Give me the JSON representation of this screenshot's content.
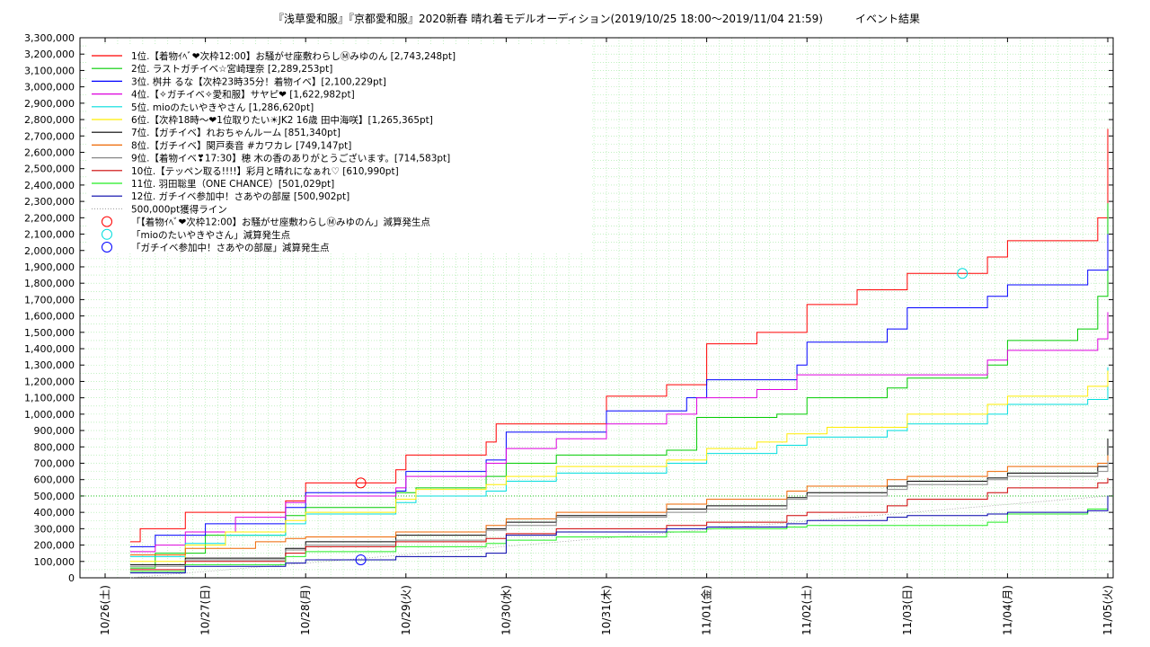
{
  "chart_data": {
    "type": "line",
    "title": "『浅草愛和服』『京都愛和服』2020新春 晴れ着モデルオーディション(2019/10/25 18:00～2019/11/04 21:59)　　　イベント結果",
    "xlabel": "",
    "ylabel": "",
    "grid": true,
    "legend_position": "top-left",
    "x_range": [
      "10/26(土)",
      "11/05(火)"
    ],
    "ylim": [
      0,
      3300000
    ],
    "y_ticks": [
      "0",
      "100,000",
      "200,000",
      "300,000",
      "400,000",
      "500,000",
      "600,000",
      "700,000",
      "800,000",
      "900,000",
      "1,000,000",
      "1,100,000",
      "1,200,000",
      "1,300,000",
      "1,400,000",
      "1,500,000",
      "1,600,000",
      "1,700,000",
      "1,800,000",
      "1,900,000",
      "2,000,000",
      "2,100,000",
      "2,200,000",
      "2,300,000",
      "2,400,000",
      "2,500,000",
      "2,600,000",
      "2,700,000",
      "2,800,000",
      "2,900,000",
      "3,000,000",
      "3,100,000",
      "3,200,000",
      "3,300,000"
    ],
    "x_ticks": [
      "10/26(土)",
      "10/27(日)",
      "10/28(月)",
      "10/29(火)",
      "10/30(水)",
      "10/31(木)",
      "11/01(金)",
      "11/02(土)",
      "11/03(日)",
      "11/04(月)",
      "11/05(火)"
    ],
    "series": [
      {
        "name": "1位.【着物ｲﾍﾞ❤次枠12:00】お騒がせ座敷わらしⓂみゆのん [2,743,248pt]",
        "color": "#ff0000",
        "points": [
          [
            0.25,
            220000
          ],
          [
            0.35,
            300000
          ],
          [
            0.8,
            400000
          ],
          [
            1.8,
            470000
          ],
          [
            2.0,
            580000
          ],
          [
            2.9,
            660000
          ],
          [
            3.0,
            750000
          ],
          [
            3.8,
            830000
          ],
          [
            3.9,
            940000
          ],
          [
            5.0,
            1110000
          ],
          [
            5.6,
            1180000
          ],
          [
            6.0,
            1430000
          ],
          [
            6.5,
            1500000
          ],
          [
            7.0,
            1670000
          ],
          [
            7.5,
            1760000
          ],
          [
            8.0,
            1860000
          ],
          [
            8.8,
            1960000
          ],
          [
            9.0,
            2060000
          ],
          [
            9.9,
            2200000
          ],
          [
            10.0,
            2743248
          ]
        ]
      },
      {
        "name": "2位. ラストガチイベ☆宮崎理奈 [2,289,253pt]",
        "color": "#00cc00",
        "points": [
          [
            0.25,
            60000
          ],
          [
            0.5,
            150000
          ],
          [
            1.0,
            260000
          ],
          [
            1.8,
            380000
          ],
          [
            2.0,
            430000
          ],
          [
            2.9,
            520000
          ],
          [
            3.1,
            550000
          ],
          [
            3.8,
            620000
          ],
          [
            4.0,
            700000
          ],
          [
            4.5,
            750000
          ],
          [
            5.6,
            780000
          ],
          [
            5.9,
            980000
          ],
          [
            6.7,
            1000000
          ],
          [
            7.0,
            1100000
          ],
          [
            7.8,
            1160000
          ],
          [
            8.0,
            1220000
          ],
          [
            8.8,
            1300000
          ],
          [
            9.0,
            1450000
          ],
          [
            9.7,
            1520000
          ],
          [
            9.9,
            1720000
          ],
          [
            10.0,
            2289253
          ]
        ]
      },
      {
        "name": "3位. 桝井 るな【次枠23時35分！着物イベ】[2,100,229pt]",
        "color": "#0000ff",
        "points": [
          [
            0.25,
            190000
          ],
          [
            0.5,
            260000
          ],
          [
            1.0,
            330000
          ],
          [
            1.8,
            430000
          ],
          [
            2.0,
            520000
          ],
          [
            2.9,
            530000
          ],
          [
            3.0,
            650000
          ],
          [
            3.8,
            720000
          ],
          [
            4.0,
            890000
          ],
          [
            5.0,
            1020000
          ],
          [
            5.8,
            1100000
          ],
          [
            6.0,
            1210000
          ],
          [
            6.9,
            1300000
          ],
          [
            7.0,
            1440000
          ],
          [
            7.8,
            1520000
          ],
          [
            8.0,
            1650000
          ],
          [
            8.8,
            1720000
          ],
          [
            9.0,
            1790000
          ],
          [
            9.8,
            1880000
          ],
          [
            10.0,
            2100229
          ]
        ]
      },
      {
        "name": "4位.【✧ガチイベ✧愛和服】サヤピ❤ [1,622,982pt]",
        "color": "#dd00dd",
        "points": [
          [
            0.25,
            160000
          ],
          [
            0.5,
            200000
          ],
          [
            0.8,
            280000
          ],
          [
            1.3,
            370000
          ],
          [
            1.8,
            460000
          ],
          [
            2.0,
            500000
          ],
          [
            2.9,
            550000
          ],
          [
            3.0,
            620000
          ],
          [
            3.8,
            700000
          ],
          [
            4.0,
            790000
          ],
          [
            4.5,
            850000
          ],
          [
            5.0,
            940000
          ],
          [
            5.6,
            1000000
          ],
          [
            5.9,
            1100000
          ],
          [
            6.5,
            1150000
          ],
          [
            6.9,
            1240000
          ],
          [
            8.8,
            1330000
          ],
          [
            9.0,
            1390000
          ],
          [
            9.9,
            1460000
          ],
          [
            10.0,
            1622982
          ]
        ]
      },
      {
        "name": "5位. mioのたいやきやさん [1,286,620pt]",
        "color": "#00dddd",
        "points": [
          [
            0.25,
            130000
          ],
          [
            0.8,
            210000
          ],
          [
            1.2,
            260000
          ],
          [
            1.8,
            330000
          ],
          [
            2.0,
            390000
          ],
          [
            2.9,
            460000
          ],
          [
            3.1,
            500000
          ],
          [
            3.8,
            530000
          ],
          [
            4.0,
            590000
          ],
          [
            4.5,
            640000
          ],
          [
            5.6,
            700000
          ],
          [
            6.0,
            760000
          ],
          [
            6.7,
            810000
          ],
          [
            7.0,
            860000
          ],
          [
            7.8,
            900000
          ],
          [
            8.0,
            940000
          ],
          [
            8.8,
            1000000
          ],
          [
            9.0,
            1060000
          ],
          [
            9.8,
            1090000
          ],
          [
            10.0,
            1286620
          ]
        ]
      },
      {
        "name": "6位.【次枠18時～❤1位取りたい☀JK2 16歳 田中海咲】[1,265,365pt]",
        "color": "#ffee00",
        "points": [
          [
            0.25,
            100000
          ],
          [
            0.8,
            200000
          ],
          [
            1.2,
            280000
          ],
          [
            1.8,
            350000
          ],
          [
            2.0,
            400000
          ],
          [
            2.9,
            480000
          ],
          [
            3.1,
            540000
          ],
          [
            3.8,
            570000
          ],
          [
            4.0,
            620000
          ],
          [
            4.5,
            680000
          ],
          [
            5.6,
            720000
          ],
          [
            6.0,
            790000
          ],
          [
            6.5,
            830000
          ],
          [
            6.8,
            880000
          ],
          [
            7.2,
            920000
          ],
          [
            8.0,
            1000000
          ],
          [
            8.8,
            1060000
          ],
          [
            9.0,
            1110000
          ],
          [
            9.8,
            1170000
          ],
          [
            10.0,
            1265365
          ]
        ]
      },
      {
        "name": "7位.【ガチイベ】れおちゃんルーム [851,340pt]",
        "color": "#000000",
        "points": [
          [
            0.25,
            80000
          ],
          [
            0.8,
            120000
          ],
          [
            1.8,
            180000
          ],
          [
            2.0,
            220000
          ],
          [
            2.9,
            260000
          ],
          [
            3.8,
            300000
          ],
          [
            4.0,
            340000
          ],
          [
            4.5,
            380000
          ],
          [
            5.6,
            420000
          ],
          [
            6.0,
            440000
          ],
          [
            6.8,
            490000
          ],
          [
            7.0,
            520000
          ],
          [
            7.8,
            560000
          ],
          [
            8.0,
            590000
          ],
          [
            8.8,
            610000
          ],
          [
            9.0,
            640000
          ],
          [
            9.9,
            680000
          ],
          [
            10.0,
            851340
          ]
        ]
      },
      {
        "name": "8位.【ガチイベ】関戸奏音 #カワカレ [749,147pt]",
        "color": "#ee6600",
        "points": [
          [
            0.25,
            140000
          ],
          [
            0.8,
            180000
          ],
          [
            1.5,
            220000
          ],
          [
            1.8,
            240000
          ],
          [
            2.0,
            250000
          ],
          [
            2.9,
            280000
          ],
          [
            3.8,
            320000
          ],
          [
            4.0,
            360000
          ],
          [
            4.5,
            400000
          ],
          [
            5.6,
            450000
          ],
          [
            6.0,
            480000
          ],
          [
            6.8,
            530000
          ],
          [
            7.0,
            560000
          ],
          [
            7.8,
            600000
          ],
          [
            8.0,
            620000
          ],
          [
            8.8,
            650000
          ],
          [
            9.0,
            680000
          ],
          [
            9.9,
            700000
          ],
          [
            10.0,
            749147
          ]
        ]
      },
      {
        "name": "9位.【着物イベ❣17:30】穂 木の香のありがとうございます。[714,583pt]",
        "color": "#888888",
        "points": [
          [
            0.25,
            70000
          ],
          [
            0.8,
            110000
          ],
          [
            1.8,
            170000
          ],
          [
            2.0,
            200000
          ],
          [
            2.9,
            230000
          ],
          [
            3.8,
            290000
          ],
          [
            4.0,
            320000
          ],
          [
            4.5,
            370000
          ],
          [
            5.6,
            400000
          ],
          [
            6.0,
            420000
          ],
          [
            6.8,
            480000
          ],
          [
            7.0,
            500000
          ],
          [
            7.8,
            540000
          ],
          [
            8.0,
            570000
          ],
          [
            8.8,
            600000
          ],
          [
            9.0,
            620000
          ],
          [
            9.9,
            650000
          ],
          [
            10.0,
            714583
          ]
        ]
      },
      {
        "name": "10位.【テッペン取る!!!!】彩月と晴れになぁれ♡ [610,990pt]",
        "color": "#cc0000",
        "points": [
          [
            0.25,
            50000
          ],
          [
            0.8,
            100000
          ],
          [
            1.8,
            150000
          ],
          [
            2.0,
            190000
          ],
          [
            2.9,
            220000
          ],
          [
            3.8,
            240000
          ],
          [
            4.0,
            270000
          ],
          [
            4.5,
            300000
          ],
          [
            5.6,
            320000
          ],
          [
            6.0,
            340000
          ],
          [
            6.8,
            380000
          ],
          [
            7.0,
            400000
          ],
          [
            7.8,
            440000
          ],
          [
            8.0,
            480000
          ],
          [
            8.8,
            520000
          ],
          [
            9.0,
            550000
          ],
          [
            9.9,
            580000
          ],
          [
            10.0,
            610990
          ]
        ]
      },
      {
        "name": "11位. 羽田聡里（ONE CHANCE）[501,029pt]",
        "color": "#22ee22",
        "points": [
          [
            0.25,
            40000
          ],
          [
            0.8,
            80000
          ],
          [
            1.8,
            130000
          ],
          [
            2.0,
            160000
          ],
          [
            2.9,
            190000
          ],
          [
            3.8,
            210000
          ],
          [
            4.0,
            230000
          ],
          [
            4.5,
            250000
          ],
          [
            5.6,
            280000
          ],
          [
            6.0,
            300000
          ],
          [
            6.8,
            310000
          ],
          [
            7.0,
            320000
          ],
          [
            8.8,
            340000
          ],
          [
            9.0,
            390000
          ],
          [
            9.8,
            420000
          ],
          [
            10.0,
            501029
          ]
        ]
      },
      {
        "name": "12位. ガチイベ参加中！さあやの部屋 [500,902pt]",
        "color": "#0000aa",
        "points": [
          [
            0.25,
            30000
          ],
          [
            0.8,
            70000
          ],
          [
            1.8,
            90000
          ],
          [
            2.0,
            110000
          ],
          [
            2.9,
            130000
          ],
          [
            3.8,
            150000
          ],
          [
            4.0,
            260000
          ],
          [
            4.5,
            280000
          ],
          [
            5.6,
            300000
          ],
          [
            6.0,
            310000
          ],
          [
            6.8,
            330000
          ],
          [
            7.0,
            350000
          ],
          [
            7.8,
            370000
          ],
          [
            8.0,
            380000
          ],
          [
            8.8,
            390000
          ],
          [
            9.0,
            400000
          ],
          [
            9.8,
            410000
          ],
          [
            10.0,
            500902
          ]
        ]
      }
    ],
    "reference_line": {
      "name": "500,000pt獲得ライン",
      "color": "#999999",
      "value": 500000
    },
    "markers": [
      {
        "name": "「【着物ｲﾍﾞ❤次枠12:00】お騒がせ座敷わらしⓂみゆのん」減算発生点",
        "color": "#ff0000",
        "x": 2.55,
        "y": 580000
      },
      {
        "name": "「mioのたいやきやさん」減算発生点",
        "color": "#00dddd",
        "x": 8.55,
        "y": 1860000
      },
      {
        "name": "「ガチイベ参加中！さあやの部屋」減算発生点",
        "color": "#0000ff",
        "x": 2.55,
        "y": 110000
      }
    ]
  }
}
